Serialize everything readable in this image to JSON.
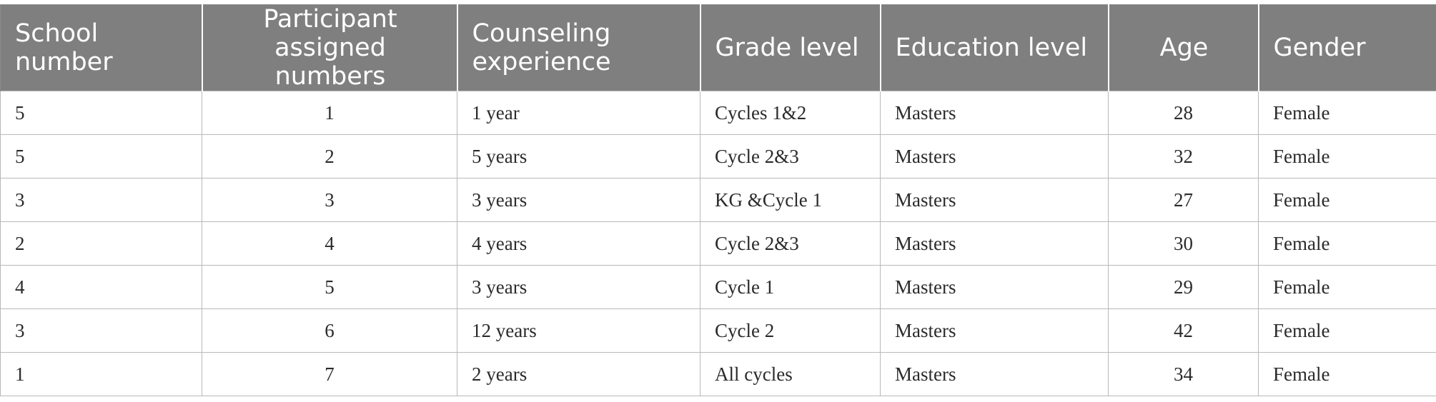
{
  "table": {
    "headers": [
      "School number",
      "Participant assigned numbers",
      "Counseling experience",
      "Grade level",
      "Education level",
      "Age",
      "Gender"
    ],
    "rows": [
      [
        "5",
        "1",
        "1 year",
        "Cycles 1&2",
        "Masters",
        "28",
        "Female"
      ],
      [
        "5",
        "2",
        "5 years",
        "Cycle 2&3",
        "Masters",
        "32",
        "Female"
      ],
      [
        "3",
        "3",
        "3 years",
        "KG &Cycle 1",
        "Masters",
        "27",
        "Female"
      ],
      [
        "2",
        "4",
        "4 years",
        "Cycle 2&3",
        "Masters",
        "30",
        "Female"
      ],
      [
        "4",
        "5",
        "3 years",
        "Cycle 1",
        "Masters",
        "29",
        "Female"
      ],
      [
        "3",
        "6",
        "12 years",
        "Cycle 2",
        "Masters",
        "42",
        "Female"
      ],
      [
        "1",
        "7",
        "2 years",
        "All cycles",
        "Masters",
        "34",
        "Female"
      ]
    ]
  },
  "colors": {
    "header_background": "#7f7f7f",
    "header_text": "#ffffff",
    "grid_lines": "#b9b9b9",
    "body_text": "#2b2b2b"
  }
}
